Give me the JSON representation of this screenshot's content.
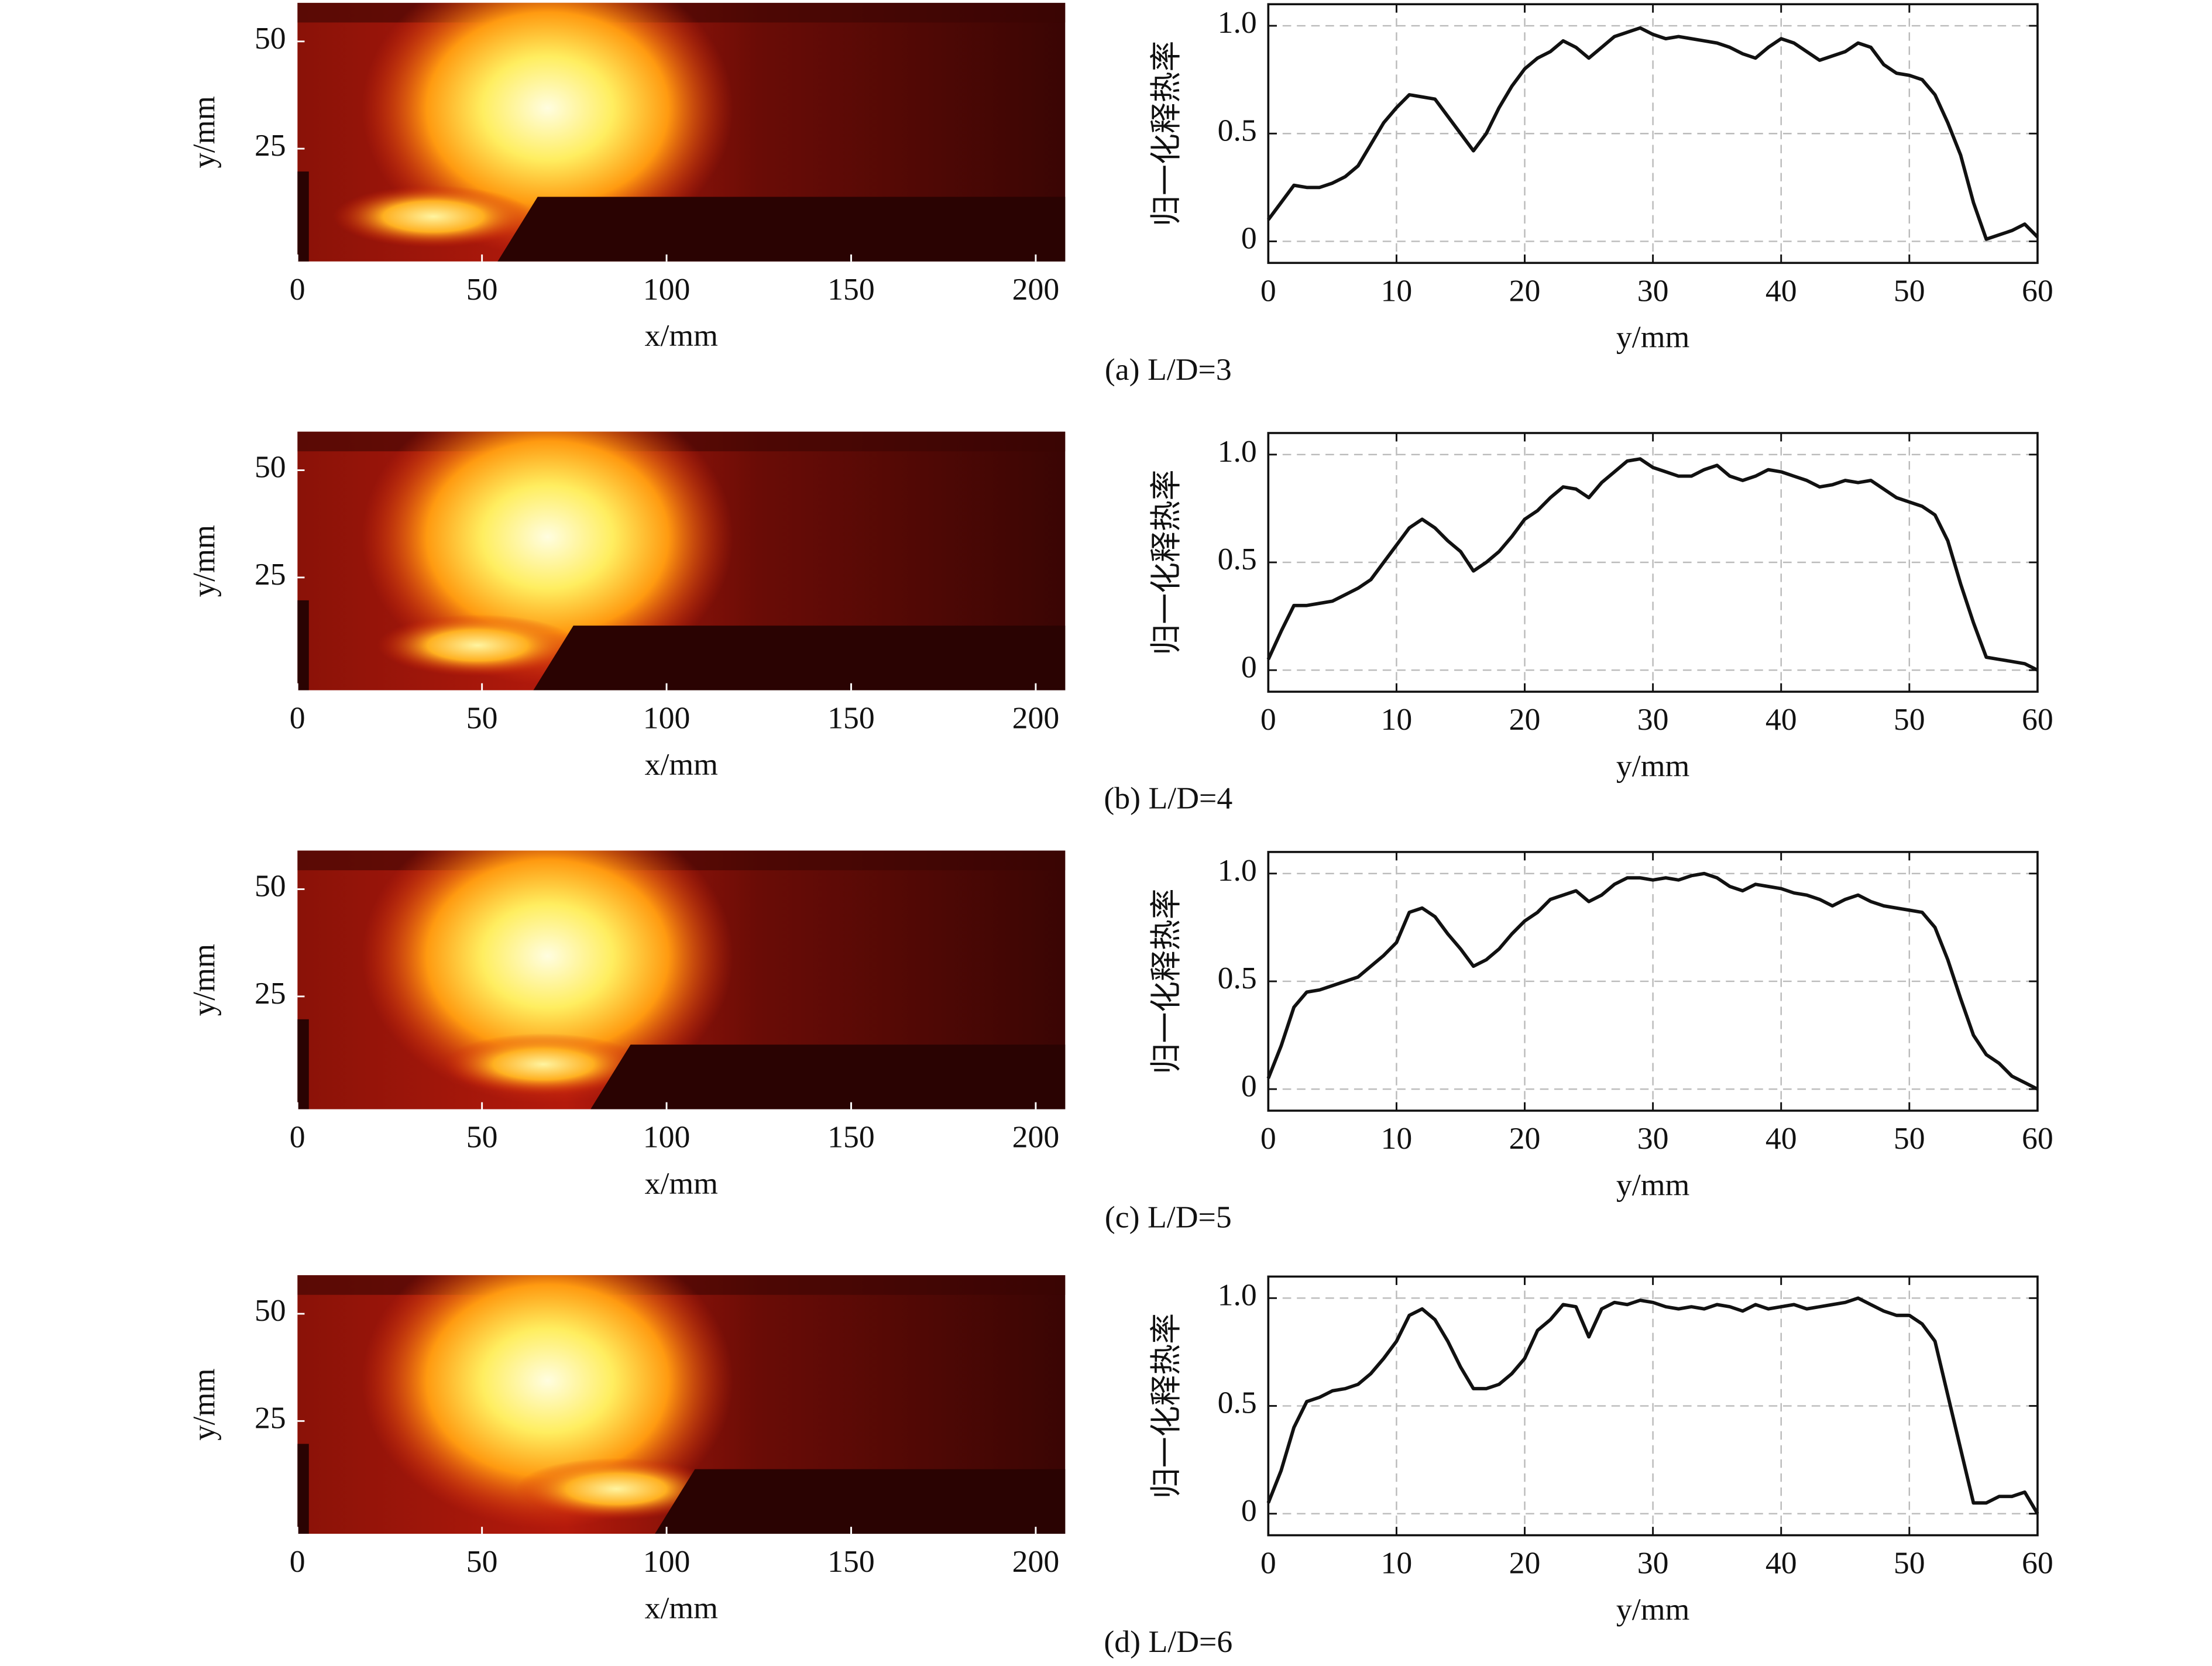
{
  "chart_data": [
    {
      "type": "image",
      "xlabel": "x/mm",
      "ylabel": "y/mm",
      "xlim": [
        0,
        208
      ],
      "ylim": [
        -1.3,
        59
      ],
      "xticks": [
        0,
        50,
        100,
        150,
        200
      ],
      "yticks": [
        25,
        50
      ]
    },
    {
      "type": "line",
      "xlabel": "y/mm",
      "ylabel": "归一化释热率",
      "caption": "(a) L/D=3",
      "xlim": [
        0,
        60
      ],
      "ylim": [
        -0.1,
        1.1
      ],
      "xticks": [
        0,
        10,
        20,
        30,
        40,
        50,
        60
      ],
      "yticks": [
        0,
        0.5,
        {
          "value": 1,
          "label": "1.0"
        }
      ],
      "grid": true,
      "x": [
        0,
        1,
        2,
        3,
        4,
        5,
        6,
        7,
        8,
        9,
        10,
        11,
        12,
        13,
        14,
        15,
        16,
        17,
        18,
        19,
        20,
        21,
        22,
        23,
        24,
        25,
        26,
        27,
        28,
        29,
        30,
        31,
        32,
        33,
        34,
        35,
        36,
        37,
        38,
        39,
        40,
        41,
        42,
        43,
        44,
        45,
        46,
        47,
        48,
        49,
        50,
        51,
        52,
        53,
        54,
        55,
        56,
        57,
        58,
        59,
        60
      ],
      "series": [
        {
          "color": "#111111",
          "values": [
            0.1,
            0.18,
            0.26,
            0.25,
            0.25,
            0.27,
            0.3,
            0.35,
            0.45,
            0.55,
            0.62,
            0.68,
            0.67,
            0.66,
            0.58,
            0.5,
            0.42,
            0.5,
            0.62,
            0.72,
            0.8,
            0.85,
            0.88,
            0.93,
            0.9,
            0.85,
            0.9,
            0.95,
            0.97,
            0.99,
            0.96,
            0.94,
            0.95,
            0.94,
            0.93,
            0.92,
            0.9,
            0.87,
            0.85,
            0.9,
            0.94,
            0.92,
            0.88,
            0.84,
            0.86,
            0.88,
            0.92,
            0.9,
            0.82,
            0.78,
            0.77,
            0.75,
            0.68,
            0.55,
            0.4,
            0.18,
            0.01,
            0.03,
            0.05,
            0.08,
            0.02
          ]
        }
      ]
    },
    {
      "type": "image",
      "xlabel": "x/mm",
      "ylabel": "y/mm",
      "xlim": [
        0,
        208
      ],
      "ylim": [
        -1.3,
        59
      ],
      "xticks": [
        0,
        50,
        100,
        150,
        200
      ],
      "yticks": [
        25,
        50
      ]
    },
    {
      "type": "line",
      "xlabel": "y/mm",
      "ylabel": "归一化释热率",
      "caption": "(b) L/D=4",
      "xlim": [
        0,
        60
      ],
      "ylim": [
        -0.1,
        1.1
      ],
      "xticks": [
        0,
        10,
        20,
        30,
        40,
        50,
        60
      ],
      "yticks": [
        0,
        0.5,
        {
          "value": 1,
          "label": "1.0"
        }
      ],
      "grid": true,
      "x": [
        0,
        1,
        2,
        3,
        4,
        5,
        6,
        7,
        8,
        9,
        10,
        11,
        12,
        13,
        14,
        15,
        16,
        17,
        18,
        19,
        20,
        21,
        22,
        23,
        24,
        25,
        26,
        27,
        28,
        29,
        30,
        31,
        32,
        33,
        34,
        35,
        36,
        37,
        38,
        39,
        40,
        41,
        42,
        43,
        44,
        45,
        46,
        47,
        48,
        49,
        50,
        51,
        52,
        53,
        54,
        55,
        56,
        57,
        58,
        59,
        60
      ],
      "series": [
        {
          "color": "#111111",
          "values": [
            0.05,
            0.18,
            0.3,
            0.3,
            0.31,
            0.32,
            0.35,
            0.38,
            0.42,
            0.5,
            0.58,
            0.66,
            0.7,
            0.66,
            0.6,
            0.55,
            0.46,
            0.5,
            0.55,
            0.62,
            0.7,
            0.74,
            0.8,
            0.85,
            0.84,
            0.8,
            0.87,
            0.92,
            0.97,
            0.98,
            0.94,
            0.92,
            0.9,
            0.9,
            0.93,
            0.95,
            0.9,
            0.88,
            0.9,
            0.93,
            0.92,
            0.9,
            0.88,
            0.85,
            0.86,
            0.88,
            0.87,
            0.88,
            0.84,
            0.8,
            0.78,
            0.76,
            0.72,
            0.6,
            0.4,
            0.22,
            0.06,
            0.05,
            0.04,
            0.03,
            0.0
          ]
        }
      ]
    },
    {
      "type": "image",
      "xlabel": "x/mm",
      "ylabel": "y/mm",
      "xlim": [
        0,
        208
      ],
      "ylim": [
        -1.3,
        59
      ],
      "xticks": [
        0,
        50,
        100,
        150,
        200
      ],
      "yticks": [
        25,
        50
      ]
    },
    {
      "type": "line",
      "xlabel": "y/mm",
      "ylabel": "归一化释热率",
      "caption": "(c) L/D=5",
      "xlim": [
        0,
        60
      ],
      "ylim": [
        -0.1,
        1.1
      ],
      "xticks": [
        0,
        10,
        20,
        30,
        40,
        50,
        60
      ],
      "yticks": [
        0,
        0.5,
        {
          "value": 1,
          "label": "1.0"
        }
      ],
      "grid": true,
      "x": [
        0,
        1,
        2,
        3,
        4,
        5,
        6,
        7,
        8,
        9,
        10,
        11,
        12,
        13,
        14,
        15,
        16,
        17,
        18,
        19,
        20,
        21,
        22,
        23,
        24,
        25,
        26,
        27,
        28,
        29,
        30,
        31,
        32,
        33,
        34,
        35,
        36,
        37,
        38,
        39,
        40,
        41,
        42,
        43,
        44,
        45,
        46,
        47,
        48,
        49,
        50,
        51,
        52,
        53,
        54,
        55,
        56,
        57,
        58,
        59,
        60
      ],
      "series": [
        {
          "color": "#111111",
          "values": [
            0.05,
            0.2,
            0.38,
            0.45,
            0.46,
            0.48,
            0.5,
            0.52,
            0.57,
            0.62,
            0.68,
            0.82,
            0.84,
            0.8,
            0.72,
            0.65,
            0.57,
            0.6,
            0.65,
            0.72,
            0.78,
            0.82,
            0.88,
            0.9,
            0.92,
            0.87,
            0.9,
            0.95,
            0.98,
            0.98,
            0.97,
            0.98,
            0.97,
            0.99,
            1.0,
            0.98,
            0.94,
            0.92,
            0.95,
            0.94,
            0.93,
            0.91,
            0.9,
            0.88,
            0.85,
            0.88,
            0.9,
            0.87,
            0.85,
            0.84,
            0.83,
            0.82,
            0.75,
            0.6,
            0.42,
            0.25,
            0.16,
            0.12,
            0.06,
            0.03,
            0.0
          ]
        }
      ]
    },
    {
      "type": "image",
      "xlabel": "x/mm",
      "ylabel": "y/mm",
      "xlim": [
        0,
        208
      ],
      "ylim": [
        -1.3,
        59
      ],
      "xticks": [
        0,
        50,
        100,
        150,
        200
      ],
      "yticks": [
        25,
        50
      ]
    },
    {
      "type": "line",
      "xlabel": "y/mm",
      "ylabel": "归一化释热率",
      "caption": "(d) L/D=6",
      "xlim": [
        0,
        60
      ],
      "ylim": [
        -0.1,
        1.1
      ],
      "xticks": [
        0,
        10,
        20,
        30,
        40,
        50,
        60
      ],
      "yticks": [
        0,
        0.5,
        {
          "value": 1,
          "label": "1.0"
        }
      ],
      "grid": true,
      "x": [
        0,
        1,
        2,
        3,
        4,
        5,
        6,
        7,
        8,
        9,
        10,
        11,
        12,
        13,
        14,
        15,
        16,
        17,
        18,
        19,
        20,
        21,
        22,
        23,
        24,
        25,
        26,
        27,
        28,
        29,
        30,
        31,
        32,
        33,
        34,
        35,
        36,
        37,
        38,
        39,
        40,
        41,
        42,
        43,
        44,
        45,
        46,
        47,
        48,
        49,
        50,
        51,
        52,
        53,
        54,
        55,
        56,
        57,
        58,
        59,
        60
      ],
      "series": [
        {
          "color": "#111111",
          "values": [
            0.05,
            0.2,
            0.4,
            0.52,
            0.54,
            0.57,
            0.58,
            0.6,
            0.65,
            0.72,
            0.8,
            0.92,
            0.95,
            0.9,
            0.8,
            0.68,
            0.58,
            0.58,
            0.6,
            0.65,
            0.72,
            0.85,
            0.9,
            0.97,
            0.96,
            0.82,
            0.95,
            0.98,
            0.97,
            0.99,
            0.98,
            0.96,
            0.95,
            0.96,
            0.95,
            0.97,
            0.96,
            0.94,
            0.97,
            0.95,
            0.96,
            0.97,
            0.95,
            0.96,
            0.97,
            0.98,
            1.0,
            0.97,
            0.94,
            0.92,
            0.92,
            0.88,
            0.8,
            0.55,
            0.3,
            0.05,
            0.05,
            0.08,
            0.08,
            0.1,
            0.0
          ]
        }
      ]
    }
  ]
}
